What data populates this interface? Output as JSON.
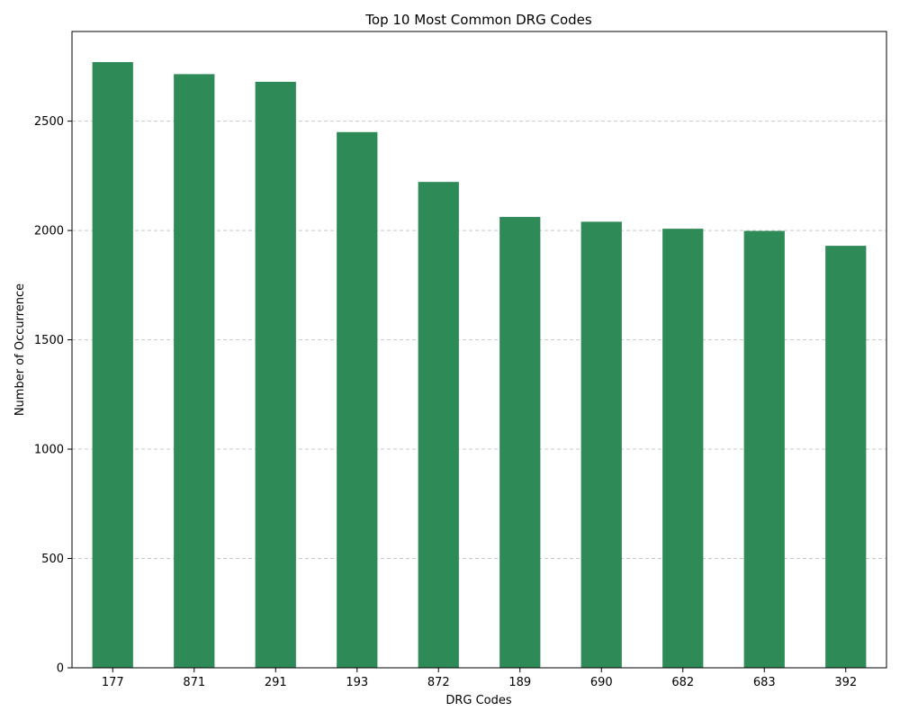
{
  "chart_data": {
    "type": "bar",
    "title": "Top 10 Most Common DRG Codes",
    "xlabel": "DRG Codes",
    "ylabel": "Number of Occurrence",
    "categories": [
      "177",
      "871",
      "291",
      "193",
      "872",
      "189",
      "690",
      "682",
      "683",
      "392"
    ],
    "values": [
      2770,
      2715,
      2680,
      2450,
      2222,
      2062,
      2040,
      2008,
      1998,
      1930
    ],
    "ylim": [
      0,
      2910
    ],
    "yticks": [
      0,
      500,
      1000,
      1500,
      2000,
      2500
    ],
    "grid": "y-dashed",
    "legend": "none",
    "bar_color": "#2e8b57",
    "grid_color": "#c8c8c8"
  }
}
